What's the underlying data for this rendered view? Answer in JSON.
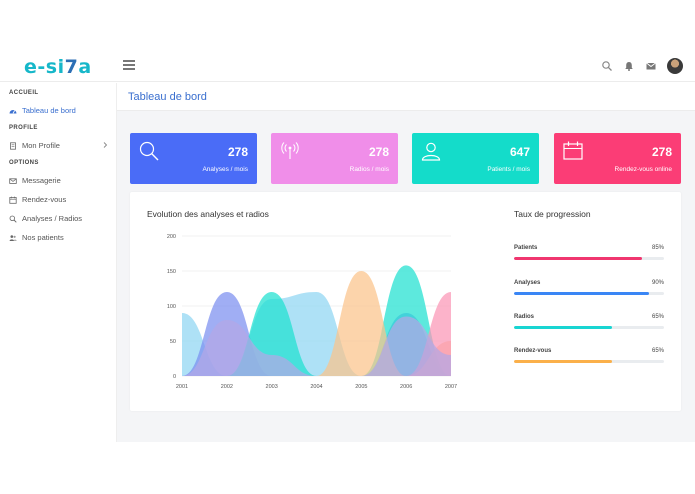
{
  "brand": {
    "logo_main": "e-si",
    "logo_accent": "7",
    "logo_end": "a"
  },
  "topbar": {
    "icons": [
      "menu-icon",
      "search-icon",
      "bell-icon",
      "mail-icon",
      "avatar"
    ]
  },
  "sidebar": {
    "sections": [
      {
        "title": "ACCUEIL",
        "items": [
          {
            "label": "Tableau de bord",
            "icon": "dashboard-icon",
            "active": true
          }
        ]
      },
      {
        "title": "PROFILE",
        "items": [
          {
            "label": "Mon Profile",
            "icon": "document-icon",
            "has_chevron": true
          }
        ]
      },
      {
        "title": "OPTIONS",
        "items": [
          {
            "label": "Messagerie",
            "icon": "mail-icon"
          },
          {
            "label": "Rendez-vous",
            "icon": "calendar-icon"
          },
          {
            "label": "Analyses / Radios",
            "icon": "search-icon"
          },
          {
            "label": "Nos patients",
            "icon": "users-icon"
          }
        ]
      }
    ]
  },
  "page": {
    "title": "Tableau de bord"
  },
  "cards": [
    {
      "value": "278",
      "label": "Analyses / mois",
      "color": "#4a6cf7",
      "icon": "search-icon"
    },
    {
      "value": "278",
      "label": "Radios / mois",
      "color": "#f08ee9",
      "icon": "antenna-icon"
    },
    {
      "value": "647",
      "label": "Patients / mois",
      "color": "#14dcca",
      "icon": "user-icon"
    },
    {
      "value": "278",
      "label": "Rendez-vous online",
      "color": "#fb3d76",
      "icon": "calendar-icon"
    }
  ],
  "chart": {
    "title": "Evolution des analyses et radios"
  },
  "chart_data": {
    "type": "area",
    "x": [
      "2001",
      "2002",
      "2003",
      "2004",
      "2005",
      "2006",
      "2007"
    ],
    "ylim": [
      0,
      200
    ],
    "yticks": [
      0,
      50,
      100,
      150,
      200
    ],
    "grid": true,
    "series": [
      {
        "color": "#8fd6f2",
        "values": [
          90,
          0,
          110,
          120,
          0,
          0,
          0
        ]
      },
      {
        "color": "#7b8ff0",
        "values": [
          0,
          120,
          0,
          0,
          0,
          90,
          0
        ]
      },
      {
        "color": "#1ee0d0",
        "values": [
          0,
          0,
          120,
          0,
          0,
          158,
          0
        ]
      },
      {
        "color": "#fbc48a",
        "values": [
          0,
          0,
          0,
          0,
          150,
          0,
          50
        ]
      },
      {
        "color": "#fb95b5",
        "values": [
          0,
          0,
          0,
          0,
          0,
          0,
          120
        ]
      },
      {
        "color": "#b3a8e6",
        "values": [
          0,
          80,
          30,
          0,
          0,
          85,
          30
        ]
      }
    ]
  },
  "progress": {
    "title": "Taux de progression",
    "items": [
      {
        "name": "Patients",
        "value": "85%",
        "fraction": 0.85,
        "color": "#f0366f"
      },
      {
        "name": "Analyses",
        "value": "90%",
        "fraction": 0.9,
        "color": "#3a86f5"
      },
      {
        "name": "Radios",
        "value": "65%",
        "fraction": 0.65,
        "color": "#18d5d2"
      },
      {
        "name": "Rendez-vous",
        "value": "65%",
        "fraction": 0.65,
        "color": "#fbb04a"
      }
    ]
  }
}
